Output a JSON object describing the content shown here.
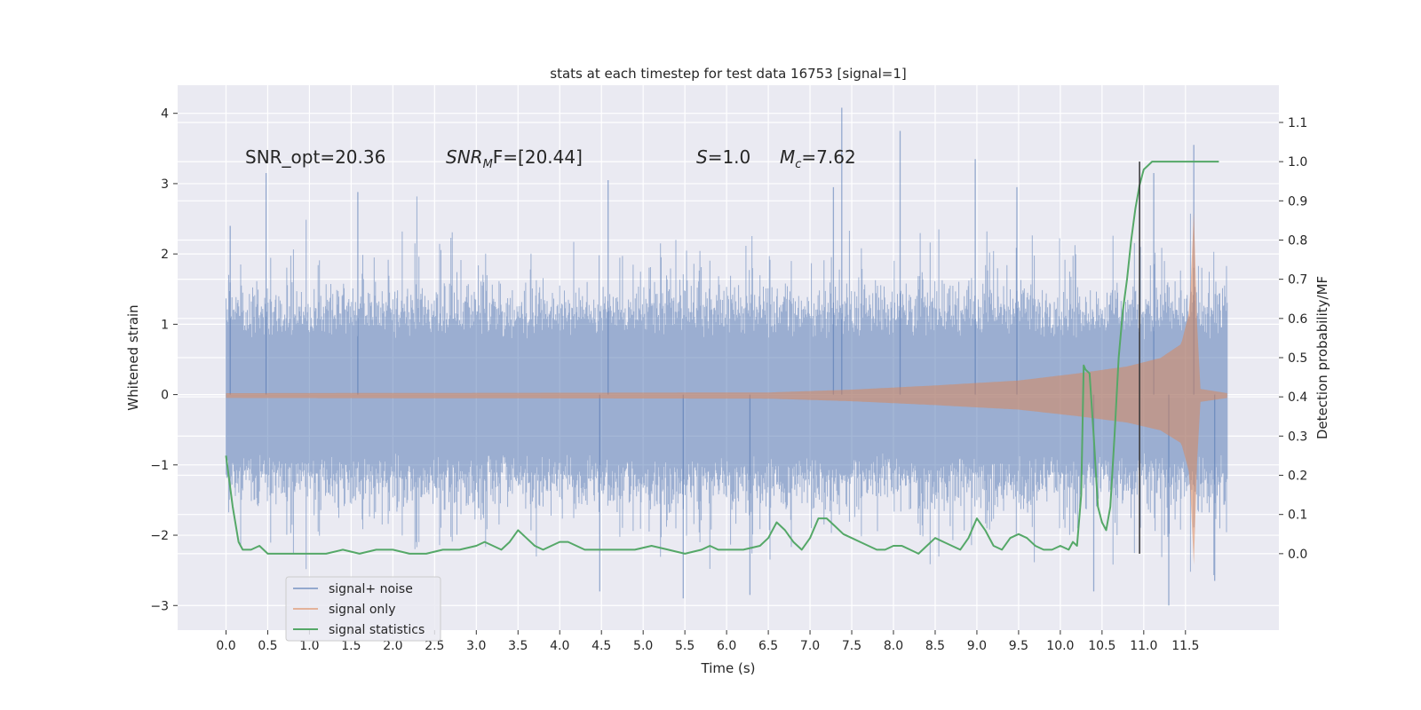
{
  "chart_data": {
    "type": "line",
    "title": "stats at each timestep for test data 16753 [signal=1]",
    "xlabel": "Time (s)",
    "ylabel_left": "Whitened strain",
    "ylabel_right": "Detection probability/MF",
    "xlim": [
      -0.58,
      12.62
    ],
    "ylim_left": [
      -3.35,
      4.4
    ],
    "ylim_right": [
      -0.195,
      1.195
    ],
    "xticks": [
      "0.0",
      "0.5",
      "1.0",
      "1.5",
      "2.0",
      "2.5",
      "3.0",
      "3.5",
      "4.0",
      "4.5",
      "5.0",
      "5.5",
      "6.0",
      "6.5",
      "7.0",
      "7.5",
      "8.0",
      "8.5",
      "9.0",
      "9.5",
      "10.0",
      "10.5",
      "11.0",
      "11.5"
    ],
    "yticks_left": [
      "4",
      "3",
      "2",
      "1",
      "0",
      "−1",
      "−2",
      "−3"
    ],
    "yticks_right": [
      "1.1",
      "1.0",
      "0.9",
      "0.8",
      "0.7",
      "0.6",
      "0.5",
      "0.4",
      "0.3",
      "0.2",
      "0.1",
      "0.0"
    ],
    "grid": true,
    "legend_position": "lower-left",
    "colors": {
      "noise": "#4c72b0",
      "signal": "#dd8452",
      "stats": "#55a868",
      "background": "#eaeaf2",
      "marker": "#333333"
    },
    "annotations": {
      "snr_opt": "SNR_opt=20.36",
      "snr_mf_base": "SNR",
      "snr_mf_sub": "M",
      "snr_mf_rest": "F=[20.44]",
      "s_var": "S",
      "s_rest": "=1.0",
      "mc_var": "M",
      "mc_sub": "c",
      "mc_rest": "=7.62"
    },
    "vertical_marker_time": 10.95,
    "series": [
      {
        "name": "signal+ noise",
        "axis": "left",
        "description_kind": "noise-band",
        "t_start": 0.0,
        "t_end": 12.0,
        "band_core": 1.1,
        "band_mid": 1.65,
        "peaks": [
          [
            0.48,
            3.15
          ],
          [
            1.58,
            2.88
          ],
          [
            4.58,
            3.05
          ],
          [
            7.28,
            2.95
          ],
          [
            7.38,
            4.08
          ],
          [
            8.08,
            3.75
          ],
          [
            8.98,
            3.35
          ],
          [
            9.48,
            2.95
          ],
          [
            11.12,
            3.15
          ],
          [
            11.6,
            3.55
          ],
          [
            0.05,
            2.4
          ],
          [
            11.85,
            -2.65
          ],
          [
            11.3,
            -3.0
          ],
          [
            5.48,
            -2.9
          ],
          [
            4.48,
            -2.8
          ],
          [
            6.28,
            -2.85
          ],
          [
            10.4,
            -2.8
          ]
        ]
      },
      {
        "name": "signal only",
        "axis": "left",
        "description_kind": "chirp",
        "amplitude_knots": [
          [
            0.0,
            0.02
          ],
          [
            6.5,
            0.03
          ],
          [
            7.5,
            0.07
          ],
          [
            8.5,
            0.13
          ],
          [
            9.5,
            0.2
          ],
          [
            10.2,
            0.3
          ],
          [
            10.8,
            0.4
          ],
          [
            11.2,
            0.52
          ],
          [
            11.45,
            0.72
          ],
          [
            11.55,
            1.2
          ],
          [
            11.6,
            2.6
          ],
          [
            11.64,
            1.0
          ],
          [
            11.68,
            0.08
          ],
          [
            12.0,
            0.02
          ]
        ]
      },
      {
        "name": "signal statistics",
        "axis": "right",
        "x": [
          0.0,
          0.08,
          0.15,
          0.2,
          0.3,
          0.4,
          0.5,
          0.6,
          0.7,
          0.8,
          1.0,
          1.2,
          1.4,
          1.6,
          1.8,
          2.0,
          2.2,
          2.4,
          2.6,
          2.8,
          3.0,
          3.1,
          3.2,
          3.3,
          3.4,
          3.5,
          3.6,
          3.7,
          3.8,
          3.9,
          4.0,
          4.1,
          4.2,
          4.3,
          4.5,
          4.7,
          4.9,
          5.1,
          5.3,
          5.5,
          5.7,
          5.8,
          5.9,
          6.0,
          6.2,
          6.4,
          6.5,
          6.6,
          6.7,
          6.8,
          6.9,
          7.0,
          7.1,
          7.2,
          7.3,
          7.4,
          7.5,
          7.6,
          7.7,
          7.8,
          7.9,
          8.0,
          8.1,
          8.2,
          8.3,
          8.4,
          8.5,
          8.6,
          8.7,
          8.8,
          8.9,
          9.0,
          9.1,
          9.2,
          9.3,
          9.4,
          9.5,
          9.6,
          9.7,
          9.8,
          9.9,
          10.0,
          10.1,
          10.15,
          10.2,
          10.25,
          10.28,
          10.3,
          10.35,
          10.4,
          10.45,
          10.5,
          10.55,
          10.6,
          10.65,
          10.7,
          10.75,
          10.8,
          10.85,
          10.9,
          10.95,
          11.0,
          11.05,
          11.1,
          11.15,
          11.2,
          11.3,
          11.5,
          11.7,
          11.9
        ],
        "y": [
          0.25,
          0.12,
          0.03,
          0.01,
          0.01,
          0.02,
          0.0,
          0.0,
          0.0,
          0.0,
          0.0,
          0.0,
          0.01,
          0.0,
          0.01,
          0.01,
          0.0,
          0.0,
          0.01,
          0.01,
          0.02,
          0.03,
          0.02,
          0.01,
          0.03,
          0.06,
          0.04,
          0.02,
          0.01,
          0.02,
          0.03,
          0.03,
          0.02,
          0.01,
          0.01,
          0.01,
          0.01,
          0.02,
          0.01,
          0.0,
          0.01,
          0.02,
          0.01,
          0.01,
          0.01,
          0.02,
          0.04,
          0.08,
          0.06,
          0.03,
          0.01,
          0.04,
          0.09,
          0.09,
          0.07,
          0.05,
          0.04,
          0.03,
          0.02,
          0.01,
          0.01,
          0.02,
          0.02,
          0.01,
          0.0,
          0.02,
          0.04,
          0.03,
          0.02,
          0.01,
          0.04,
          0.09,
          0.06,
          0.02,
          0.01,
          0.04,
          0.05,
          0.04,
          0.02,
          0.01,
          0.01,
          0.02,
          0.01,
          0.03,
          0.02,
          0.15,
          0.48,
          0.47,
          0.46,
          0.3,
          0.12,
          0.08,
          0.06,
          0.12,
          0.3,
          0.5,
          0.62,
          0.7,
          0.8,
          0.88,
          0.94,
          0.98,
          0.99,
          1.0,
          1.0,
          1.0,
          1.0,
          1.0,
          1.0,
          1.0
        ]
      }
    ]
  }
}
